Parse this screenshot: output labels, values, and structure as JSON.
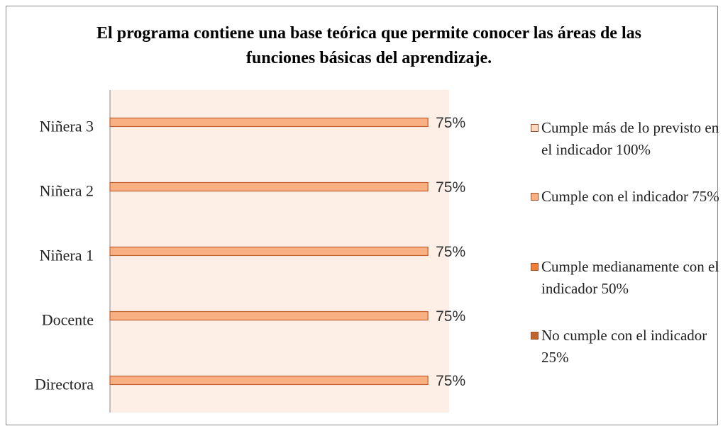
{
  "chart_data": {
    "type": "hbar",
    "title": "El programa contiene una base teórica que permite conocer las áreas de las funciones básicas del aprendizaje.",
    "categories": [
      "Directora",
      "Docente",
      "Niñera 1",
      "Niñera 2",
      "Niñera 3"
    ],
    "series": [
      {
        "name": "Cumple más de lo previsto en el indicador 100%",
        "color": "#fbd5c0",
        "values": [
          null,
          null,
          null,
          null,
          null
        ]
      },
      {
        "name": "Cumple con el indicador 75%",
        "color": "#f9b183",
        "values": [
          75,
          75,
          75,
          75,
          75
        ],
        "value_labels": [
          "75%",
          "75%",
          "75%",
          "75%",
          "75%"
        ]
      },
      {
        "name": "Cumple medianamente con el indicador 50%",
        "color": "#ef8036",
        "values": [
          null,
          null,
          null,
          null,
          null
        ]
      },
      {
        "name": "No cumple con el indicador 25%",
        "color": "#c0652f",
        "values": [
          null,
          null,
          null,
          null,
          null
        ]
      }
    ],
    "xlim": [
      0,
      80
    ],
    "legend": "right"
  }
}
